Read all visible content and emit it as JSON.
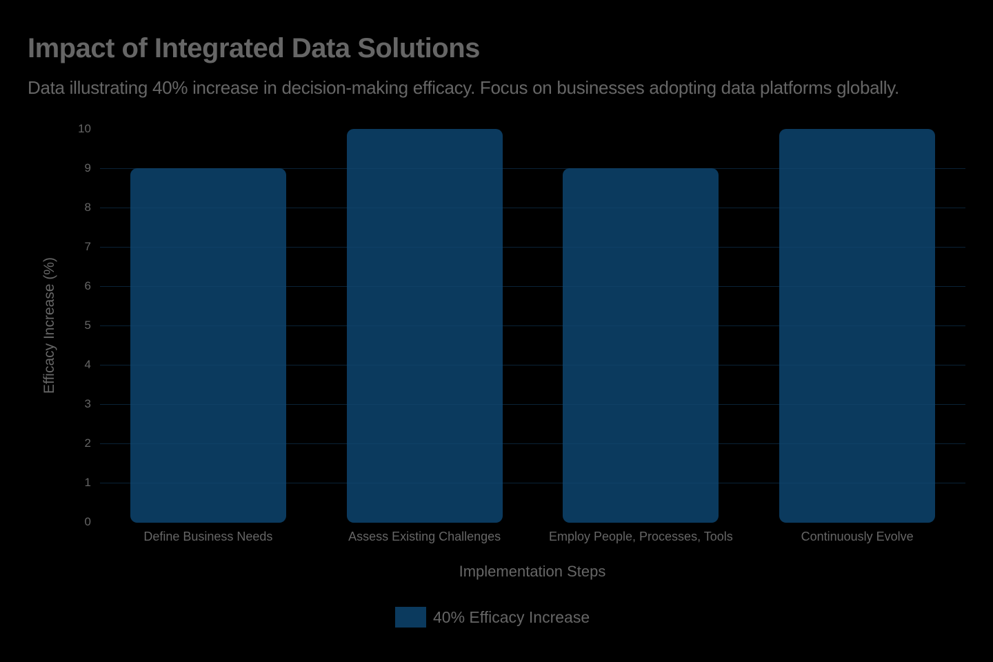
{
  "chart_data": {
    "type": "bar",
    "title": "Impact of Integrated Data Solutions",
    "subtitle": "Data illustrating 40% increase in decision-making efficacy. Focus on businesses adopting data platforms globally.",
    "categories": [
      "Define Business Needs",
      "Assess Existing Challenges",
      "Employ People, Processes, Tools",
      "Continuously Evolve"
    ],
    "series": [
      {
        "name": "40% Efficacy Increase",
        "values": [
          9,
          10,
          9,
          10
        ],
        "color": "#0b3a5e"
      }
    ],
    "xlabel": "Implementation Steps",
    "ylabel": "Efficacy Increase (%)",
    "ylim": [
      0,
      10
    ],
    "yticks": [
      "0",
      "1",
      "2",
      "3",
      "4",
      "5",
      "6",
      "7",
      "8",
      "9",
      "10"
    ],
    "grid": true,
    "legend_position": "bottom"
  }
}
